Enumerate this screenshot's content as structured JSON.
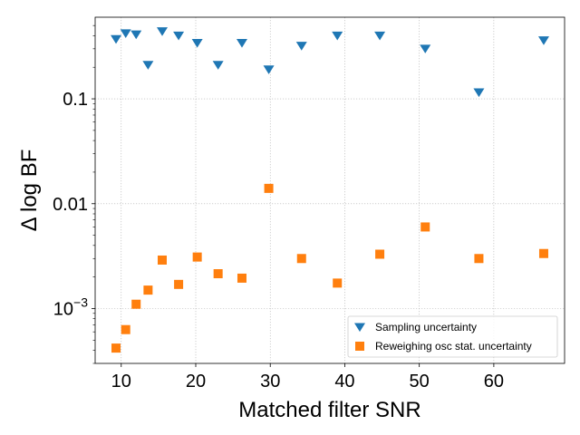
{
  "chart_data": {
    "type": "scatter",
    "title": "",
    "xlabel": "Matched filter SNR",
    "ylabel": "Δ log BF",
    "xlim": [
      6.5,
      69.5
    ],
    "ylim": [
      0.0003,
      0.6
    ],
    "yscale": "log",
    "grid": true,
    "legend_position": "lower-right",
    "x_ticks": [
      {
        "value": 10,
        "label": "10"
      },
      {
        "value": 20,
        "label": "20"
      },
      {
        "value": 30,
        "label": "30"
      },
      {
        "value": 40,
        "label": "40"
      },
      {
        "value": 50,
        "label": "50"
      },
      {
        "value": 60,
        "label": "60"
      }
    ],
    "y_ticks": [
      {
        "value": 0.001,
        "base": "10",
        "exp": "−3",
        "label": ""
      },
      {
        "value": 0.01,
        "label": "0.01"
      },
      {
        "value": 0.1,
        "label": "0.1"
      }
    ],
    "series": [
      {
        "name": "Sampling uncertainty",
        "marker": "triangle-down",
        "color": "#1f77b4",
        "points": [
          {
            "x": 9.3,
            "y": 0.37
          },
          {
            "x": 10.6,
            "y": 0.42
          },
          {
            "x": 12.0,
            "y": 0.41
          },
          {
            "x": 13.6,
            "y": 0.21
          },
          {
            "x": 15.5,
            "y": 0.44
          },
          {
            "x": 17.7,
            "y": 0.4
          },
          {
            "x": 20.2,
            "y": 0.34
          },
          {
            "x": 23.0,
            "y": 0.21
          },
          {
            "x": 26.2,
            "y": 0.34
          },
          {
            "x": 29.8,
            "y": 0.19
          },
          {
            "x": 34.2,
            "y": 0.32
          },
          {
            "x": 39.0,
            "y": 0.4
          },
          {
            "x": 44.7,
            "y": 0.4
          },
          {
            "x": 50.8,
            "y": 0.3
          },
          {
            "x": 58.0,
            "y": 0.115
          },
          {
            "x": 66.7,
            "y": 0.36
          }
        ]
      },
      {
        "name": "Reweighing osc stat. uncertainty",
        "marker": "square",
        "color": "#ff7f0e",
        "points": [
          {
            "x": 9.3,
            "y": 0.00042
          },
          {
            "x": 10.6,
            "y": 0.00063
          },
          {
            "x": 12.0,
            "y": 0.0011
          },
          {
            "x": 13.6,
            "y": 0.0015
          },
          {
            "x": 15.5,
            "y": 0.0029
          },
          {
            "x": 17.7,
            "y": 0.0017
          },
          {
            "x": 20.2,
            "y": 0.0031
          },
          {
            "x": 23.0,
            "y": 0.00215
          },
          {
            "x": 26.2,
            "y": 0.00195
          },
          {
            "x": 29.8,
            "y": 0.014
          },
          {
            "x": 34.2,
            "y": 0.003
          },
          {
            "x": 39.0,
            "y": 0.00175
          },
          {
            "x": 44.7,
            "y": 0.0033
          },
          {
            "x": 50.8,
            "y": 0.006
          },
          {
            "x": 58.0,
            "y": 0.003
          },
          {
            "x": 66.7,
            "y": 0.00335
          }
        ]
      }
    ]
  }
}
